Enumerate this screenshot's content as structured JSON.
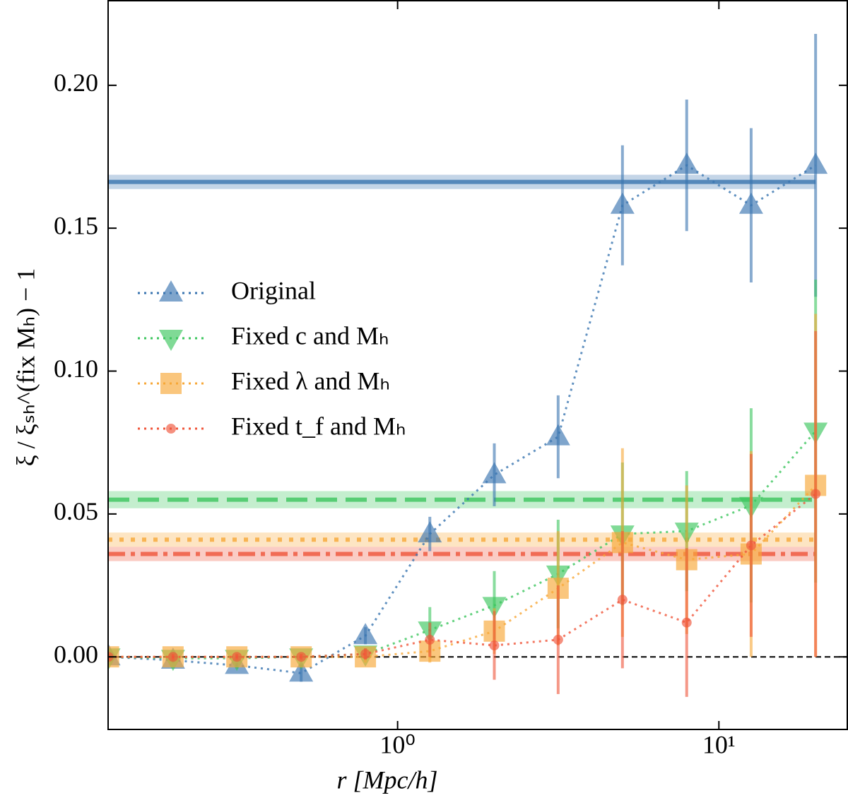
{
  "chart_data": {
    "type": "line",
    "xlabel": "r [Mpc/h]",
    "ylabel": "ξ / ξₛₕ^(fix Mₕ) − 1",
    "xscale": "log",
    "xlim": [
      0.1256,
      25.1
    ],
    "ylim": [
      -0.0254,
      0.2296
    ],
    "xticks": [
      {
        "value": 1,
        "label": "10⁰"
      },
      {
        "value": 10,
        "label": "10¹"
      }
    ],
    "yticks": [
      {
        "value": 0,
        "label": "0.00"
      },
      {
        "value": 0.05,
        "label": "0.05"
      },
      {
        "value": 0.1,
        "label": "0.10"
      },
      {
        "value": 0.15,
        "label": "0.15"
      },
      {
        "value": 0.2,
        "label": "0.20"
      }
    ],
    "legend": "upper left",
    "x": [
      0.126,
      0.2,
      0.316,
      0.501,
      0.794,
      1.26,
      2.0,
      3.16,
      5.01,
      7.94,
      12.6,
      20.0
    ],
    "series": [
      {
        "name": "Original",
        "color": "#3a75b0",
        "marker": "triangle-up",
        "values": [
          0.0,
          -0.0012,
          -0.003,
          -0.0057,
          0.0074,
          0.043,
          0.0637,
          0.077,
          0.158,
          0.172,
          0.158,
          0.172
        ],
        "errors": [
          0.001,
          0.001,
          0.001,
          0.003,
          0.003,
          0.006,
          0.011,
          0.0145,
          0.021,
          0.023,
          0.027,
          0.046
        ]
      },
      {
        "name": "Fixed c and Mₕ",
        "color": "#3cc65e",
        "marker": "triangle-down",
        "values": [
          0.0,
          -0.0005,
          -0.0005,
          0.0,
          0.001,
          0.0094,
          0.018,
          0.029,
          0.043,
          0.044,
          0.053,
          0.079
        ],
        "errors": [
          0.001,
          0.001,
          0.001,
          0.001,
          0.002,
          0.008,
          0.012,
          0.019,
          0.025,
          0.021,
          0.034,
          0.053
        ]
      },
      {
        "name": "Fixed λ and Mₕ",
        "color": "#f7a838",
        "marker": "square",
        "values": [
          0.0,
          0.0,
          0.0,
          0.0,
          0.0,
          0.002,
          0.009,
          0.024,
          0.04,
          0.034,
          0.036,
          0.06
        ],
        "errors": [
          0.001,
          0.001,
          0.001,
          0.001,
          0.002,
          0.004,
          0.008,
          0.02,
          0.033,
          0.026,
          0.036,
          0.06
        ]
      },
      {
        "name": "Fixed t_f and Mₕ",
        "color": "#f0553a",
        "marker": "circle",
        "values": [
          0.0,
          0.0,
          0.0,
          0.0,
          0.001,
          0.006,
          0.004,
          0.006,
          0.02,
          0.012,
          0.039,
          0.057
        ],
        "errors": [
          0.001,
          0.001,
          0.001,
          0.001,
          0.002,
          0.006,
          0.012,
          0.019,
          0.024,
          0.026,
          0.032,
          0.057
        ]
      }
    ],
    "hlines": [
      {
        "value": 0.1662,
        "band": 0.0025,
        "color": "#3a75b0",
        "style": "solid"
      },
      {
        "value": 0.055,
        "band": 0.003,
        "color": "#3cc65e",
        "style": "dashed"
      },
      {
        "value": 0.041,
        "band": 0.0025,
        "color": "#f7a838",
        "style": "dotted"
      },
      {
        "value": 0.036,
        "band": 0.0025,
        "color": "#f0553a",
        "style": "dashdot"
      }
    ]
  }
}
